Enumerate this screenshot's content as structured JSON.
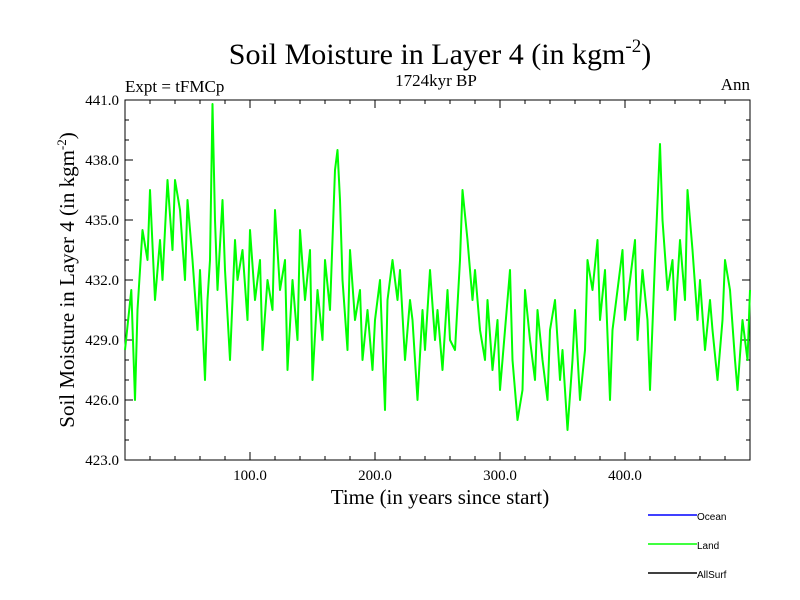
{
  "chart_data": {
    "type": "line",
    "title": "Soil Moisture in Layer 4 (in kgm",
    "title_sup": "-2",
    "title_close": ")",
    "subtitle": "1724kyr BP",
    "left_label": "Expt = tFMCp",
    "right_label": "Ann",
    "xlabel": "Time (in years since start)",
    "ylabel": "Soil Moisture in Layer 4 (in kgm",
    "ylabel_sup": "-2",
    "ylabel_close": ")",
    "xlim": [
      0,
      500
    ],
    "ylim": [
      423.0,
      441.0
    ],
    "x_ticks": [
      100,
      200,
      300,
      400
    ],
    "x_tick_labels": [
      "100.0",
      "200.0",
      "300.0",
      "400.0"
    ],
    "y_ticks": [
      423,
      426,
      429,
      432,
      435,
      438,
      441
    ],
    "y_tick_labels": [
      "423.0",
      "426.0",
      "429.0",
      "432.0",
      "435.0",
      "438.0",
      "441.0"
    ],
    "legend": [
      {
        "name": "Ocean",
        "color": "#0000ff"
      },
      {
        "name": "Land",
        "color": "#00ff00"
      },
      {
        "name": "AllSurf",
        "color": "#000000"
      }
    ],
    "series": [
      {
        "name": "Land",
        "color": "#00ff00",
        "x": [
          0,
          5,
          8,
          10,
          14,
          18,
          20,
          24,
          28,
          30,
          34,
          38,
          40,
          44,
          48,
          50,
          54,
          58,
          60,
          64,
          66,
          68,
          70,
          72,
          74,
          78,
          80,
          84,
          88,
          90,
          94,
          98,
          100,
          104,
          108,
          110,
          114,
          118,
          120,
          124,
          128,
          130,
          134,
          138,
          140,
          144,
          148,
          150,
          154,
          158,
          160,
          164,
          168,
          170,
          172,
          174,
          178,
          180,
          184,
          188,
          190,
          194,
          198,
          200,
          204,
          208,
          210,
          214,
          218,
          220,
          224,
          228,
          230,
          234,
          238,
          240,
          244,
          248,
          250,
          254,
          258,
          260,
          264,
          268,
          270,
          274,
          278,
          280,
          284,
          288,
          290,
          294,
          298,
          300,
          304,
          308,
          310,
          314,
          318,
          320,
          324,
          328,
          330,
          334,
          338,
          340,
          344,
          348,
          350,
          354,
          358,
          360,
          364,
          368,
          370,
          374,
          378,
          380,
          384,
          388,
          390,
          394,
          398,
          400,
          404,
          408,
          410,
          414,
          418,
          420,
          424,
          428,
          430,
          434,
          438,
          440,
          444,
          448,
          450,
          454,
          458,
          460,
          464,
          468,
          470,
          474,
          478,
          480,
          484,
          488,
          490,
          494,
          498,
          500
        ],
        "values": [
          428.5,
          431.5,
          426.0,
          430.5,
          434.5,
          433.0,
          436.5,
          431.0,
          434.0,
          432.0,
          437.0,
          433.5,
          437.0,
          435.5,
          432.0,
          436.0,
          433.0,
          429.5,
          432.5,
          427.0,
          431.0,
          433.0,
          440.8,
          435.0,
          431.5,
          436.0,
          432.5,
          428.0,
          434.0,
          432.0,
          433.5,
          430.0,
          434.5,
          431.0,
          433.0,
          428.5,
          432.0,
          430.5,
          435.5,
          431.5,
          433.0,
          427.5,
          432.0,
          429.0,
          434.5,
          431.0,
          433.5,
          427.0,
          431.5,
          429.0,
          433.0,
          430.5,
          437.5,
          438.5,
          436.0,
          432.0,
          428.5,
          433.5,
          430.0,
          431.5,
          428.0,
          430.5,
          427.5,
          430.0,
          432.0,
          425.5,
          431.0,
          433.0,
          431.0,
          432.5,
          428.0,
          431.0,
          430.0,
          426.0,
          430.5,
          428.5,
          432.5,
          429.0,
          430.5,
          427.5,
          431.5,
          429.0,
          428.5,
          433.0,
          436.5,
          434.0,
          431.0,
          432.5,
          429.5,
          428.0,
          431.0,
          427.5,
          430.0,
          426.5,
          429.5,
          432.5,
          428.0,
          425.0,
          426.5,
          431.5,
          429.0,
          427.0,
          430.5,
          428.0,
          426.0,
          429.5,
          431.0,
          427.0,
          428.5,
          424.5,
          428.0,
          430.5,
          426.0,
          428.5,
          433.0,
          431.5,
          434.0,
          430.0,
          432.5,
          426.0,
          429.5,
          431.5,
          433.5,
          430.0,
          432.0,
          434.0,
          429.0,
          432.5,
          430.0,
          426.5,
          433.0,
          438.8,
          435.0,
          431.5,
          433.0,
          430.0,
          434.0,
          431.0,
          436.5,
          433.5,
          430.0,
          432.0,
          428.5,
          431.0,
          429.5,
          427.0,
          430.0,
          433.0,
          431.5,
          428.0,
          426.5,
          430.0,
          428.0,
          431.5
        ]
      }
    ]
  }
}
